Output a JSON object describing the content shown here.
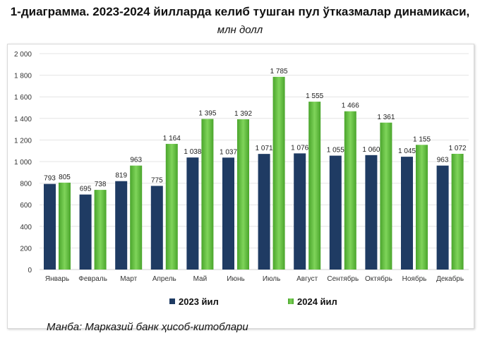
{
  "title": "1-диаграмма. 2023-2024 йилларда келиб тушган пул ўтказмалар динамикаси,",
  "title_unit": "млн долл",
  "source": "Манба: Марказий банк ҳисоб-китоблари",
  "chart_data": {
    "type": "bar",
    "title": "1-диаграмма. 2023-2024 йилларда келиб тушган пул ўтказмалар динамикаси, млн долл",
    "categories": [
      "Январь",
      "Февраль",
      "Март",
      "Апрель",
      "Май",
      "Июнь",
      "Июль",
      "Август",
      "Сентябрь",
      "Октябрь",
      "Ноябрь",
      "Декабрь"
    ],
    "series": [
      {
        "name": "2023 йил",
        "color": "#1f3b63",
        "values": [
          793,
          695,
          819,
          775,
          1038,
          1037,
          1071,
          1076,
          1055,
          1060,
          1045,
          963
        ],
        "labels": [
          "793",
          "695",
          "819",
          "775",
          "1 038",
          "1 037",
          "1 071",
          "1 076",
          "1 055",
          "1 060",
          "1 045",
          "963"
        ]
      },
      {
        "name": "2024 йил",
        "color": "#5cb83a",
        "values": [
          805,
          738,
          963,
          1164,
          1395,
          1392,
          1785,
          1555,
          1466,
          1361,
          1155,
          1072
        ],
        "labels": [
          "805",
          "738",
          "963",
          "1 164",
          "1 395",
          "1 392",
          "1 785",
          "1 555",
          "1 466",
          "1 361",
          "1 155",
          "1 072"
        ]
      }
    ],
    "ylim": [
      0,
      2000
    ],
    "yticks": [
      "0",
      "200",
      "400",
      "600",
      "800",
      "1 000",
      "1 200",
      "1 400",
      "1 600",
      "1 800",
      "2 000"
    ],
    "grid": true,
    "legend": "bottom"
  }
}
